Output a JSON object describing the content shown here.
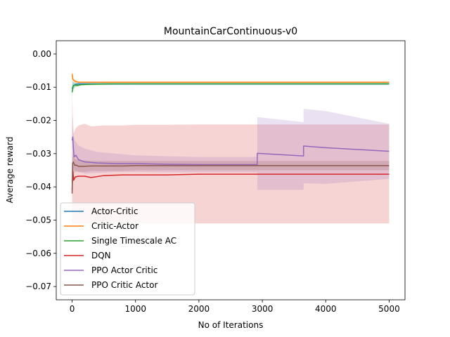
{
  "chart_data": {
    "type": "line",
    "title": "MountainCarContinuous-v0",
    "xlabel": "No of Iterations",
    "ylabel": "Average reward",
    "xlim": [
      -250,
      5250
    ],
    "ylim": [
      -0.074,
      0.004
    ],
    "xticks": [
      0,
      1000,
      2000,
      3000,
      4000,
      5000
    ],
    "yticks": [
      0.0,
      -0.01,
      -0.02,
      -0.03,
      -0.04,
      -0.05,
      -0.06,
      -0.07
    ],
    "xtick_labels": [
      "0",
      "1000",
      "2000",
      "3000",
      "4000",
      "5000"
    ],
    "ytick_labels": [
      "0.00",
      "−0.01",
      "−0.02",
      "−0.03",
      "−0.04",
      "−0.05",
      "−0.06",
      "−0.07"
    ],
    "grid": false,
    "legend_position": "lower-left",
    "series": [
      {
        "name": "Actor-Critic",
        "color": "#1f77b4",
        "x": [
          0,
          20,
          50,
          100,
          200,
          500,
          1000,
          2000,
          3000,
          4000,
          5000
        ],
        "y": [
          -0.0105,
          -0.0095,
          -0.0092,
          -0.009,
          -0.009,
          -0.009,
          -0.009,
          -0.009,
          -0.009,
          -0.009,
          -0.009
        ],
        "band_upper": [
          -0.008,
          -0.0085,
          -0.0086,
          -0.0087,
          -0.0087,
          -0.0087,
          -0.0087,
          -0.0087,
          -0.0087,
          -0.0087,
          -0.0087
        ],
        "band_lower": [
          -0.012,
          -0.0105,
          -0.0098,
          -0.0093,
          -0.0093,
          -0.0093,
          -0.0093,
          -0.0093,
          -0.0093,
          -0.0093,
          -0.0093
        ]
      },
      {
        "name": "Critic-Actor",
        "color": "#ff7f0e",
        "x": [
          0,
          10,
          30,
          60,
          100,
          200,
          500,
          1000,
          2000,
          3000,
          4000,
          5000
        ],
        "y": [
          -0.006,
          -0.0075,
          -0.008,
          -0.0083,
          -0.0085,
          -0.0085,
          -0.0085,
          -0.0085,
          -0.0085,
          -0.0085,
          -0.0085,
          -0.0085
        ],
        "band_upper": [
          -0.004,
          -0.0065,
          -0.0075,
          -0.008,
          -0.0083,
          -0.0083,
          -0.0083,
          -0.0083,
          -0.0083,
          -0.0083,
          -0.0083,
          -0.0083
        ],
        "band_lower": [
          -0.008,
          -0.0085,
          -0.0085,
          -0.0087,
          -0.0087,
          -0.0087,
          -0.0087,
          -0.0087,
          -0.0087,
          -0.0087,
          -0.0087,
          -0.0087
        ]
      },
      {
        "name": "Single Timescale AC",
        "color": "#2ca02c",
        "x": [
          0,
          15,
          40,
          80,
          150,
          300,
          600,
          1000,
          2000,
          3000,
          4000,
          5000
        ],
        "y": [
          -0.0115,
          -0.0098,
          -0.0093,
          -0.0095,
          -0.0092,
          -0.0091,
          -0.009,
          -0.009,
          -0.009,
          -0.009,
          -0.009,
          -0.009
        ],
        "band_upper": [
          -0.0095,
          -0.0085,
          -0.0086,
          -0.0088,
          -0.0088,
          -0.0088,
          -0.0088,
          -0.0088,
          -0.0088,
          -0.0088,
          -0.0088,
          -0.0088
        ],
        "band_lower": [
          -0.013,
          -0.011,
          -0.0102,
          -0.0098,
          -0.0095,
          -0.0094,
          -0.0093,
          -0.0092,
          -0.0092,
          -0.0092,
          -0.0092,
          -0.0092
        ]
      },
      {
        "name": "DQN",
        "color": "#d62728",
        "x": [
          0,
          10,
          25,
          50,
          100,
          200,
          300,
          500,
          800,
          1000,
          1500,
          2000,
          3000,
          4000,
          5000
        ],
        "y": [
          -0.041,
          -0.035,
          -0.038,
          -0.037,
          -0.0368,
          -0.0368,
          -0.0372,
          -0.0366,
          -0.0364,
          -0.0364,
          -0.0364,
          -0.0362,
          -0.0362,
          -0.0362,
          -0.0362
        ],
        "band_upper": [
          -0.012,
          -0.018,
          -0.024,
          -0.0225,
          -0.0215,
          -0.021,
          -0.0218,
          -0.0215,
          -0.0215,
          -0.0213,
          -0.0213,
          -0.0212,
          -0.0212,
          -0.0212,
          -0.0212
        ],
        "band_lower": [
          -0.051,
          -0.051,
          -0.051,
          -0.051,
          -0.051,
          -0.051,
          -0.051,
          -0.051,
          -0.051,
          -0.051,
          -0.051,
          -0.051,
          -0.051,
          -0.051,
          -0.051
        ]
      },
      {
        "name": "PPO Actor Critic",
        "color": "#9467bd",
        "x": [
          0,
          10,
          30,
          60,
          100,
          200,
          400,
          700,
          1000,
          1500,
          2000,
          2500,
          2920,
          2920,
          3650,
          3650,
          4000,
          5000
        ],
        "y": [
          -0.026,
          -0.025,
          -0.031,
          -0.0305,
          -0.0318,
          -0.0325,
          -0.0328,
          -0.033,
          -0.033,
          -0.0332,
          -0.0333,
          -0.0333,
          -0.0333,
          -0.0299,
          -0.0307,
          -0.0277,
          -0.0282,
          -0.0293
        ],
        "band_upper": [
          -0.018,
          -0.022,
          -0.0255,
          -0.0265,
          -0.0275,
          -0.0285,
          -0.0295,
          -0.03,
          -0.0305,
          -0.0308,
          -0.031,
          -0.031,
          -0.031,
          -0.019,
          -0.0205,
          -0.0165,
          -0.0172,
          -0.021
        ],
        "band_lower": [
          -0.034,
          -0.037,
          -0.036,
          -0.0355,
          -0.0355,
          -0.036,
          -0.0358,
          -0.0355,
          -0.0355,
          -0.0356,
          -0.0356,
          -0.0356,
          -0.0356,
          -0.0409,
          -0.0409,
          -0.0389,
          -0.0391,
          -0.0376
        ]
      },
      {
        "name": "PPO Critic Actor",
        "color": "#8c564b",
        "x": [
          0,
          8,
          20,
          40,
          70,
          100,
          150,
          200,
          300,
          500,
          800,
          1000,
          1500,
          2000,
          3000,
          4000,
          5000
        ],
        "y": [
          -0.042,
          -0.033,
          -0.0325,
          -0.0335,
          -0.0335,
          -0.0338,
          -0.0338,
          -0.0338,
          -0.0337,
          -0.0337,
          -0.0337,
          -0.0336,
          -0.0336,
          -0.0336,
          -0.0336,
          -0.0336,
          -0.0336
        ],
        "band_upper": [
          -0.03,
          -0.031,
          -0.031,
          -0.0315,
          -0.0318,
          -0.032,
          -0.032,
          -0.032,
          -0.0322,
          -0.0322,
          -0.0322,
          -0.0322,
          -0.0322,
          -0.0322,
          -0.0322,
          -0.0322,
          -0.0322
        ],
        "band_lower": [
          -0.045,
          -0.036,
          -0.0345,
          -0.0352,
          -0.0352,
          -0.0355,
          -0.0355,
          -0.0355,
          -0.0352,
          -0.0352,
          -0.0352,
          -0.035,
          -0.035,
          -0.035,
          -0.035,
          -0.035,
          -0.035
        ]
      }
    ]
  }
}
